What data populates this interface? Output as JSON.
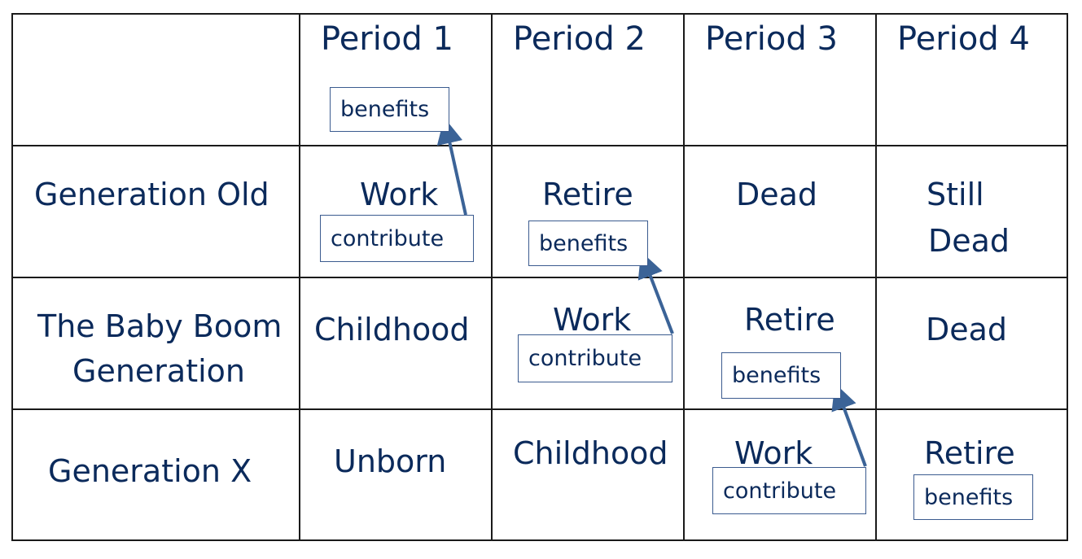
{
  "headers": [
    "Period 1",
    "Period 2",
    "Period 3",
    "Period 4"
  ],
  "rows": [
    {
      "label": "Generation Old",
      "cells": [
        "Work",
        "Retire",
        "Dead",
        "Still Dead"
      ]
    },
    {
      "label_line1": "The Baby Boom",
      "label_line2": "Generation",
      "cells": [
        "Childhood",
        "Work",
        "Retire",
        "Dead"
      ]
    },
    {
      "label": "Generation X",
      "cells": [
        "Unborn",
        "Childhood",
        "Work",
        "Retire"
      ]
    }
  ],
  "still_dead_line1": "Still",
  "still_dead_line2": "Dead",
  "boxes": {
    "benefits": "benefits",
    "contribute": "contribute"
  },
  "colors": {
    "text": "#0b2a5b",
    "arrow": "#3b6397",
    "grid": "#1a1a1a"
  }
}
